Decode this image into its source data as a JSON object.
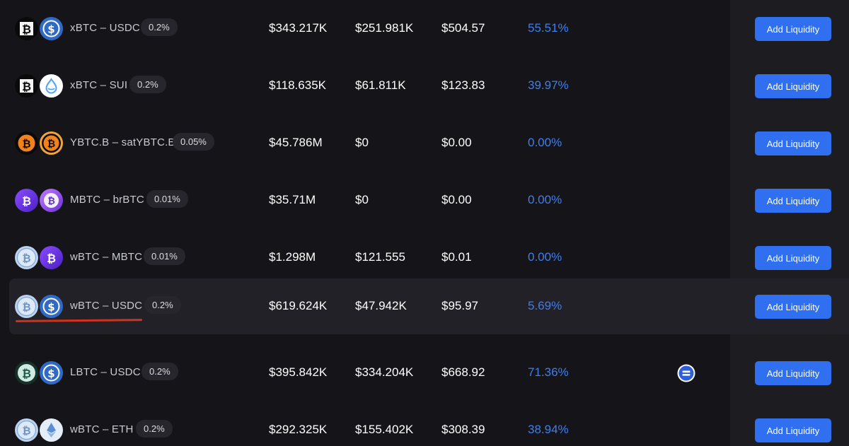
{
  "pools": [
    {
      "token_a": "xbtc-icon",
      "token_b": "usdc-icon",
      "pair": "xBTC – USDC",
      "fee": "0.2%",
      "tvl": "$343.217K",
      "volume": "$251.981K",
      "fees": "$504.57",
      "apr": "55.51%",
      "action": "Add Liquidity"
    },
    {
      "token_a": "xbtc-icon",
      "token_b": "sui-icon",
      "pair": "xBTC – SUI",
      "fee": "0.2%",
      "tvl": "$118.635K",
      "volume": "$61.811K",
      "fees": "$123.83",
      "apr": "39.97%",
      "action": "Add Liquidity"
    },
    {
      "token_a": "ybtc-icon",
      "token_b": "satybtc-icon",
      "pair": "YBTC.B – satYBTC.B",
      "fee": "0.05%",
      "tvl": "$45.786M",
      "volume": "$0",
      "fees": "$0.00",
      "apr": "0.00%",
      "action": "Add Liquidity"
    },
    {
      "token_a": "mbtc-icon",
      "token_b": "brbtc-icon",
      "pair": "MBTC – brBTC",
      "fee": "0.01%",
      "tvl": "$35.71M",
      "volume": "$0",
      "fees": "$0.00",
      "apr": "0.00%",
      "action": "Add Liquidity"
    },
    {
      "token_a": "wbtc-icon",
      "token_b": "mbtc-icon",
      "pair": "wBTC – MBTC",
      "fee": "0.01%",
      "tvl": "$1.298M",
      "volume": "$121.555",
      "fees": "$0.01",
      "apr": "0.00%",
      "action": "Add Liquidity"
    },
    {
      "token_a": "wbtc-icon",
      "token_b": "usdc-icon",
      "pair": "wBTC – USDC",
      "fee": "0.2%",
      "tvl": "$619.624K",
      "volume": "$47.942K",
      "fees": "$95.97",
      "apr": "5.69%",
      "action": "Add Liquidity",
      "highlighted": true
    },
    {
      "token_a": "lbtc-icon",
      "token_b": "usdc-icon",
      "pair": "LBTC – USDC",
      "fee": "0.2%",
      "tvl": "$395.842K",
      "volume": "$334.204K",
      "fees": "$668.92",
      "apr": "71.36%",
      "action": "Add Liquidity",
      "extra_icon": "equal-icon"
    },
    {
      "token_a": "wbtc-icon",
      "token_b": "eth-icon",
      "pair": "wBTC – ETH",
      "fee": "0.2%",
      "tvl": "$292.325K",
      "volume": "$155.402K",
      "fees": "$308.39",
      "apr": "38.94%",
      "action": "Add Liquidity"
    }
  ],
  "colors": {
    "background": "#151519",
    "highlight_row": "#212127",
    "apr_text": "#3f7ef1",
    "button": "#2f6ff0",
    "annotation_underline": "#d0321f"
  }
}
